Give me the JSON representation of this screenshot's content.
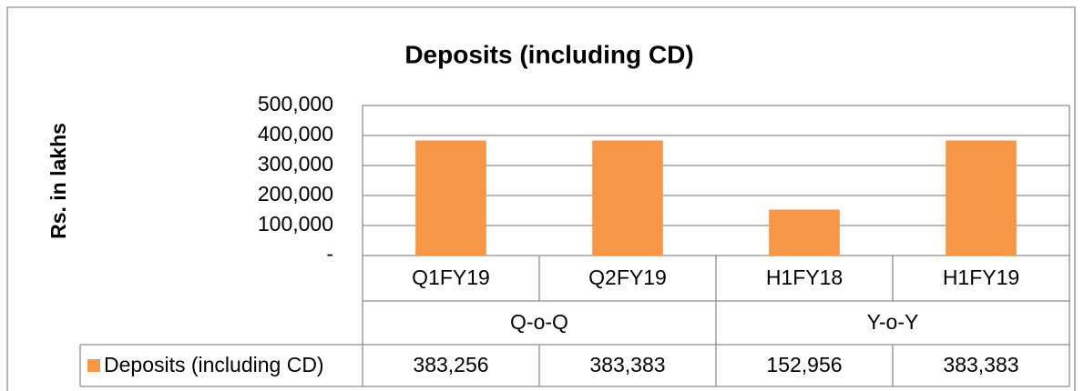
{
  "chart_data": {
    "type": "bar",
    "title": "Deposits (including CD)",
    "ylabel": "Rs. in lakhs",
    "categories": [
      "Q1FY19",
      "Q2FY19",
      "H1FY18",
      "H1FY19"
    ],
    "group_labels": [
      "Q-o-Q",
      "Y-o-Y"
    ],
    "series": [
      {
        "name": "Deposits (including CD)",
        "color": "#f79646",
        "values": [
          383256,
          383383,
          152956,
          383383
        ],
        "value_labels": [
          "383,256",
          "383,383",
          "152,956",
          "383,383"
        ]
      }
    ],
    "ylim": [
      0,
      500000
    ],
    "yticks": [
      {
        "value": 0,
        "label": "-"
      },
      {
        "value": 100000,
        "label": "100,000"
      },
      {
        "value": 200000,
        "label": "200,000"
      },
      {
        "value": 300000,
        "label": "300,000"
      },
      {
        "value": 400000,
        "label": "400,000"
      },
      {
        "value": 500000,
        "label": "500,000"
      }
    ],
    "grid": true
  }
}
